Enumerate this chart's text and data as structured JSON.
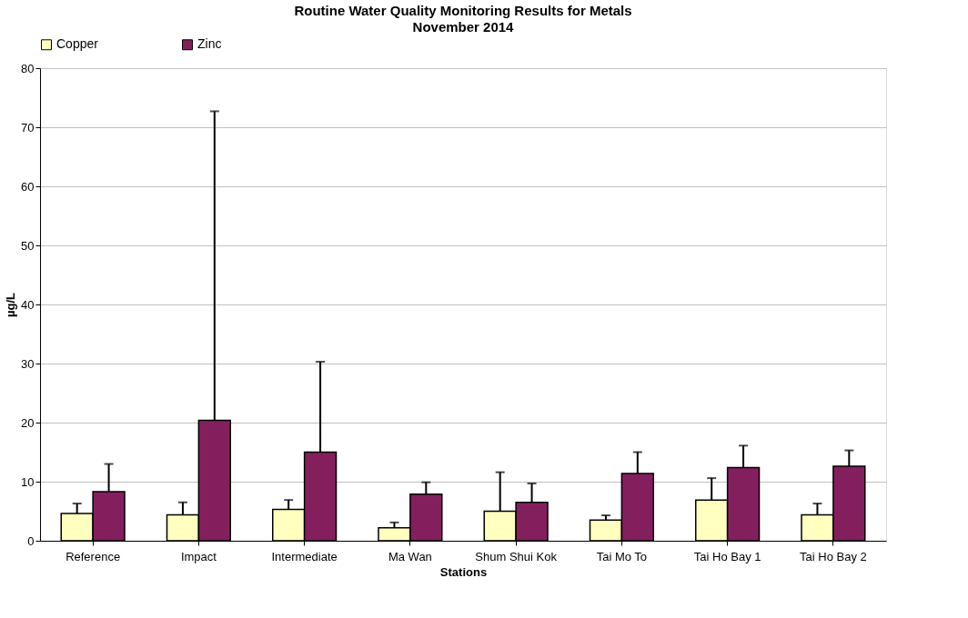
{
  "chart_data": {
    "type": "bar",
    "title": "Routine Water Quality Monitoring Results for Metals",
    "subtitle": "November 2014",
    "xlabel": "Stations",
    "ylabel": "µg/L",
    "categories": [
      "Reference",
      "Impact",
      "Intermediate",
      "Ma Wan",
      "Shum Shui Kok",
      "Tai Mo To",
      "Tai Ho Bay 1",
      "Tai Ho Bay 2"
    ],
    "series": [
      {
        "name": "Copper",
        "color": "#ffffc0",
        "values": [
          4.6,
          4.4,
          5.3,
          2.2,
          5.0,
          3.5,
          6.9,
          4.4
        ],
        "errors": [
          [
            4.6,
            6.3
          ],
          [
            4.4,
            6.5
          ],
          [
            5.3,
            6.9
          ],
          [
            2.2,
            3.1
          ],
          [
            5.0,
            11.6
          ],
          [
            3.5,
            4.3
          ],
          [
            6.9,
            10.6
          ],
          [
            4.4,
            6.3
          ]
        ]
      },
      {
        "name": "Zinc",
        "color": "#841f5e",
        "values": [
          8.3,
          20.4,
          15.0,
          7.9,
          6.5,
          11.4,
          12.4,
          12.6
        ],
        "errors": [
          [
            8.3,
            13.0
          ],
          [
            20.4,
            72.7
          ],
          [
            15.0,
            30.3
          ],
          [
            7.9,
            9.9
          ],
          [
            6.5,
            9.7
          ],
          [
            11.4,
            15.0
          ],
          [
            12.4,
            16.1
          ],
          [
            12.6,
            15.3
          ]
        ]
      }
    ],
    "ylim": [
      0,
      80
    ],
    "yticks": [
      0,
      10,
      20,
      30,
      40,
      50,
      60,
      70,
      80
    ],
    "grid": "y",
    "legend": "top"
  }
}
